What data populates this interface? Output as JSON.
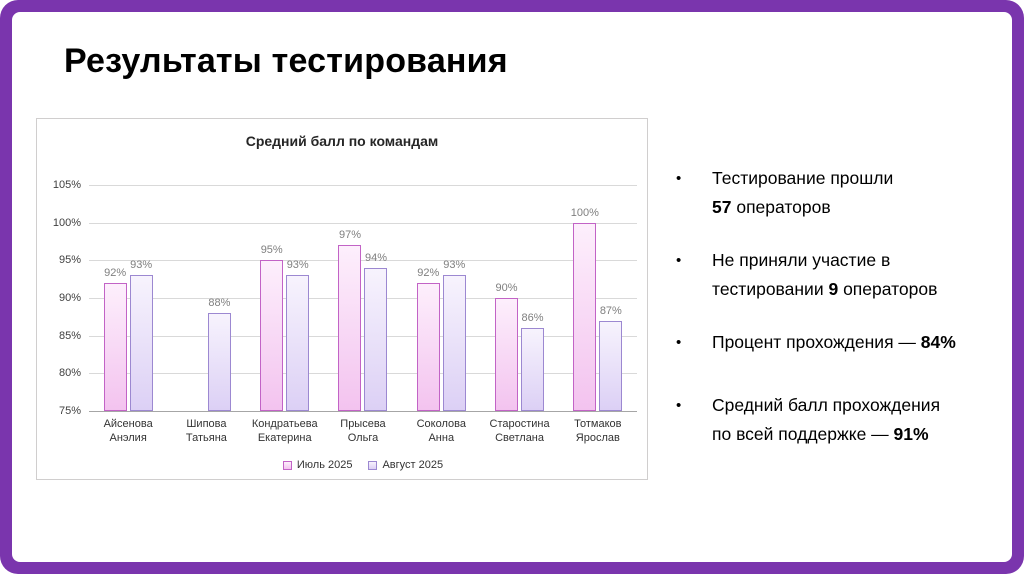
{
  "slide": {
    "title": "Результаты тестирования"
  },
  "chart_data": {
    "type": "bar",
    "title": "Средний балл по командам",
    "categories": [
      "Айсенова Анэлия",
      "Шипова Татьяна",
      "Кондратьева Екатерина",
      "Прысева Ольга",
      "Соколова Анна",
      "Старостина Светлана",
      "Тотмаков Ярослав"
    ],
    "series": [
      {
        "name": "Июль 2025",
        "values": [
          92,
          null,
          95,
          97,
          92,
          90,
          100
        ],
        "fill_top": "#fdeffc",
        "fill_bottom": "#f3c3ef",
        "border": "#c263c6"
      },
      {
        "name": "Август 2025",
        "values": [
          93,
          88,
          93,
          94,
          93,
          86,
          87
        ],
        "fill_top": "#f7f3fd",
        "fill_bottom": "#dcd0f5",
        "border": "#9c88d1"
      }
    ],
    "ylim": [
      75,
      105
    ],
    "ytick_step": 5,
    "ytick_suffix": "%",
    "value_suffix": "%",
    "grid": true,
    "legend_position": "bottom"
  },
  "summary": {
    "bullets": [
      {
        "segments": [
          {
            "text": "Тестирование прошли\n",
            "bold": false
          },
          {
            "text": "57",
            "bold": true
          },
          {
            "text": " операторов",
            "bold": false
          }
        ]
      },
      {
        "segments": [
          {
            "text": "Не приняли участие в\nтестировании ",
            "bold": false
          },
          {
            "text": "9",
            "bold": true
          },
          {
            "text": " операторов",
            "bold": false
          }
        ]
      },
      {
        "segments": [
          {
            "text": "Процент прохождения — ",
            "bold": false
          },
          {
            "text": "84%",
            "bold": true
          }
        ]
      },
      {
        "segments": [
          {
            "text": "Средний балл прохождения\nпо всей поддержке — ",
            "bold": false
          },
          {
            "text": "91%",
            "bold": true
          }
        ]
      }
    ]
  },
  "colors": {
    "frame": "#7a35ad",
    "grid_line": "#d9d9d9",
    "axis_line": "#a6a6a6",
    "value_label": "#7f7f7f"
  }
}
